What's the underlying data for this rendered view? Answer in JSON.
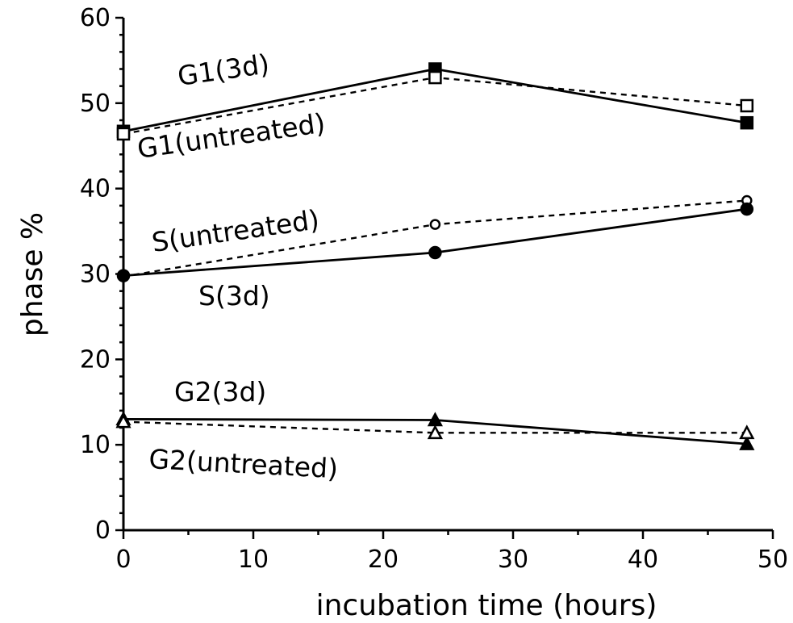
{
  "chart_data": {
    "type": "line",
    "title": "",
    "xlabel": "incubation time (hours)",
    "ylabel": "phase %",
    "xlim": [
      0,
      50
    ],
    "ylim": [
      0,
      60
    ],
    "x_ticks": [
      0,
      10,
      20,
      30,
      40,
      50
    ],
    "y_ticks": [
      0,
      10,
      20,
      30,
      40,
      50,
      60
    ],
    "grid": false,
    "legend": "inline-labels",
    "x": [
      0,
      24,
      48
    ],
    "series": [
      {
        "name": "G1(3d)",
        "values": [
          46.7,
          54.0,
          47.7
        ],
        "marker": "filled-square",
        "line": "solid"
      },
      {
        "name": "G1(untreated)",
        "values": [
          46.4,
          53.0,
          49.7
        ],
        "marker": "open-square",
        "line": "dashed"
      },
      {
        "name": "S(untreated)",
        "values": [
          29.7,
          35.8,
          38.6
        ],
        "marker": "open-circle",
        "line": "dashed"
      },
      {
        "name": "S(3d)",
        "values": [
          29.8,
          32.5,
          37.6
        ],
        "marker": "filled-circle",
        "line": "solid"
      },
      {
        "name": "G2(3d)",
        "values": [
          13.0,
          12.9,
          10.1
        ],
        "marker": "filled-triangle",
        "line": "solid"
      },
      {
        "name": "G2(untreated)",
        "values": [
          12.7,
          11.4,
          11.4
        ],
        "marker": "open-triangle",
        "line": "dashed"
      }
    ]
  }
}
